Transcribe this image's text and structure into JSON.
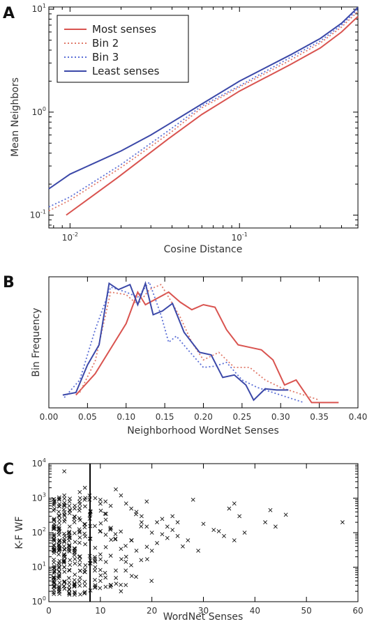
{
  "chart_data": [
    {
      "panel": "A",
      "type": "line",
      "xlabel": "Cosine Distance",
      "ylabel": "Mean Neighbors",
      "xscale": "log",
      "yscale": "log",
      "xlim": [
        0.0075,
        0.5
      ],
      "ylim": [
        0.075,
        10.5
      ],
      "xticks": [
        {
          "value": 0.01,
          "base": "10",
          "exp": "-2"
        },
        {
          "value": 0.1,
          "base": "10",
          "exp": "-1"
        }
      ],
      "yticks": [
        {
          "value": 0.1,
          "base": "10",
          "exp": "-1"
        },
        {
          "value": 1,
          "base": "10",
          "exp": "0"
        },
        {
          "value": 10,
          "base": "10",
          "exp": "1"
        }
      ],
      "legend_position": "top-left",
      "series": [
        {
          "name": "Most senses",
          "color": "#d9534f",
          "style": "solid",
          "x": [
            0.0095,
            0.019,
            0.038,
            0.06,
            0.1,
            0.2,
            0.3,
            0.4,
            0.5
          ],
          "y": [
            0.1,
            0.23,
            0.55,
            0.95,
            1.6,
            2.9,
            4.2,
            6.0,
            8.5
          ]
        },
        {
          "name": "Bin 2",
          "color": "#e07a6a",
          "style": "dotted",
          "x": [
            0.0075,
            0.01,
            0.02,
            0.04,
            0.06,
            0.1,
            0.2,
            0.3,
            0.4,
            0.5
          ],
          "y": [
            0.11,
            0.14,
            0.29,
            0.65,
            1.1,
            1.75,
            3.2,
            4.7,
            6.7,
            9.5
          ]
        },
        {
          "name": "Bin 3",
          "color": "#5b6fd6",
          "style": "dotted",
          "x": [
            0.0075,
            0.01,
            0.02,
            0.04,
            0.06,
            0.1,
            0.2,
            0.3,
            0.4,
            0.5
          ],
          "y": [
            0.12,
            0.15,
            0.31,
            0.7,
            1.15,
            1.8,
            3.4,
            4.9,
            7.0,
            10.0
          ]
        },
        {
          "name": "Least senses",
          "color": "#3b48a8",
          "style": "solid",
          "x": [
            0.0075,
            0.01,
            0.02,
            0.03,
            0.04,
            0.06,
            0.1,
            0.2,
            0.3,
            0.4,
            0.5
          ],
          "y": [
            0.18,
            0.25,
            0.42,
            0.6,
            0.8,
            1.2,
            2.0,
            3.6,
            5.2,
            7.3,
            10.4
          ]
        }
      ]
    },
    {
      "panel": "B",
      "type": "line",
      "xlabel": "Neighborhood WordNet Senses",
      "ylabel": "Bin Frequency",
      "xlim": [
        0.0,
        0.4
      ],
      "ylim": [
        0,
        1
      ],
      "xticks": [
        "0.00",
        "0.05",
        "0.10",
        "0.15",
        "0.20",
        "0.25",
        "0.30",
        "0.35",
        "0.40"
      ],
      "series": [
        {
          "name": "Most senses",
          "color": "#d9534f",
          "style": "solid",
          "x": [
            0.035,
            0.06,
            0.08,
            0.1,
            0.115,
            0.125,
            0.14,
            0.155,
            0.17,
            0.185,
            0.2,
            0.215,
            0.23,
            0.245,
            0.26,
            0.275,
            0.29,
            0.305,
            0.32,
            0.34,
            0.36,
            0.375
          ],
          "y": [
            0.08,
            0.25,
            0.45,
            0.65,
            0.9,
            0.8,
            0.85,
            0.9,
            0.82,
            0.76,
            0.8,
            0.78,
            0.6,
            0.48,
            0.46,
            0.44,
            0.36,
            0.16,
            0.2,
            0.02,
            0.02,
            0.02
          ]
        },
        {
          "name": "Bin 2",
          "color": "#e07a6a",
          "style": "dotted",
          "x": [
            0.04,
            0.06,
            0.08,
            0.1,
            0.115,
            0.13,
            0.145,
            0.155,
            0.17,
            0.185,
            0.2,
            0.22,
            0.24,
            0.26,
            0.28,
            0.3,
            0.32,
            0.34,
            0.35
          ],
          "y": [
            0.1,
            0.35,
            0.9,
            0.88,
            0.8,
            0.92,
            0.96,
            0.86,
            0.7,
            0.5,
            0.36,
            0.42,
            0.3,
            0.3,
            0.2,
            0.14,
            0.1,
            0.06,
            0.04
          ]
        },
        {
          "name": "Bin 3",
          "color": "#5b6fd6",
          "style": "dotted",
          "x": [
            0.02,
            0.04,
            0.06,
            0.08,
            0.1,
            0.115,
            0.13,
            0.145,
            0.155,
            0.165,
            0.18,
            0.2,
            0.215,
            0.23,
            0.25,
            0.27,
            0.29,
            0.31,
            0.33
          ],
          "y": [
            0.06,
            0.2,
            0.6,
            0.94,
            0.9,
            0.86,
            0.98,
            0.72,
            0.5,
            0.55,
            0.44,
            0.3,
            0.31,
            0.34,
            0.2,
            0.14,
            0.1,
            0.06,
            0.02
          ]
        },
        {
          "name": "Least senses",
          "color": "#3b48a8",
          "style": "solid",
          "x": [
            0.018,
            0.035,
            0.05,
            0.065,
            0.078,
            0.09,
            0.105,
            0.115,
            0.125,
            0.135,
            0.147,
            0.16,
            0.175,
            0.195,
            0.21,
            0.225,
            0.24,
            0.255,
            0.265,
            0.28,
            0.295,
            0.31
          ],
          "y": [
            0.08,
            0.1,
            0.32,
            0.48,
            0.97,
            0.92,
            0.96,
            0.8,
            0.97,
            0.72,
            0.75,
            0.81,
            0.58,
            0.42,
            0.4,
            0.22,
            0.24,
            0.16,
            0.04,
            0.13,
            0.12,
            0.12
          ]
        }
      ]
    },
    {
      "panel": "C",
      "type": "scatter",
      "xlabel": "WordNet Senses",
      "ylabel": "K-F WF",
      "xlim": [
        0,
        60
      ],
      "ylim": [
        1,
        10000
      ],
      "yscale": "log",
      "xticks": [
        "0",
        "10",
        "20",
        "30",
        "40",
        "50",
        "60"
      ],
      "yticks": [
        {
          "value": 1,
          "base": "10",
          "exp": "0"
        },
        {
          "value": 10,
          "base": "10",
          "exp": "1"
        },
        {
          "value": 100,
          "base": "10",
          "exp": "2"
        },
        {
          "value": 1000,
          "base": "10",
          "exp": "3"
        },
        {
          "value": 10000,
          "base": "10",
          "exp": "4"
        }
      ],
      "vline_x": 8,
      "marker": "x",
      "points": [
        [
          3,
          6000
        ],
        [
          1,
          700
        ],
        [
          2,
          900
        ],
        [
          3,
          1200
        ],
        [
          4,
          800
        ],
        [
          5,
          500
        ],
        [
          6,
          1500
        ],
        [
          7,
          2000
        ],
        [
          9,
          1000
        ],
        [
          10,
          900
        ],
        [
          11,
          800
        ],
        [
          12,
          600
        ],
        [
          13,
          1800
        ],
        [
          14,
          1200
        ],
        [
          15,
          700
        ],
        [
          16,
          500
        ],
        [
          17,
          400
        ],
        [
          18,
          200
        ],
        [
          19,
          150
        ],
        [
          20,
          100
        ],
        [
          21,
          200
        ],
        [
          22,
          90
        ],
        [
          23,
          150
        ],
        [
          24,
          120
        ],
        [
          25,
          200
        ],
        [
          26,
          40
        ],
        [
          27,
          60
        ],
        [
          28,
          900
        ],
        [
          29,
          30
        ],
        [
          32,
          120
        ],
        [
          34,
          80
        ],
        [
          35,
          500
        ],
        [
          36,
          700
        ],
        [
          37,
          300
        ],
        [
          42,
          200
        ],
        [
          43,
          450
        ],
        [
          46,
          330
        ],
        [
          57,
          200
        ],
        [
          19,
          800
        ],
        [
          20,
          30
        ],
        [
          15,
          20
        ],
        [
          14,
          2
        ],
        [
          12,
          3
        ],
        [
          10,
          4
        ],
        [
          9,
          3
        ],
        [
          11,
          5
        ],
        [
          13,
          8
        ],
        [
          16,
          60
        ],
        [
          17,
          30
        ],
        [
          18,
          300
        ],
        [
          22,
          250
        ],
        [
          25,
          80
        ],
        [
          30,
          180
        ],
        [
          33,
          110
        ],
        [
          36,
          60
        ],
        [
          38,
          100
        ],
        [
          44,
          150
        ],
        [
          21,
          50
        ],
        [
          23,
          70
        ],
        [
          24,
          300
        ]
      ]
    }
  ]
}
